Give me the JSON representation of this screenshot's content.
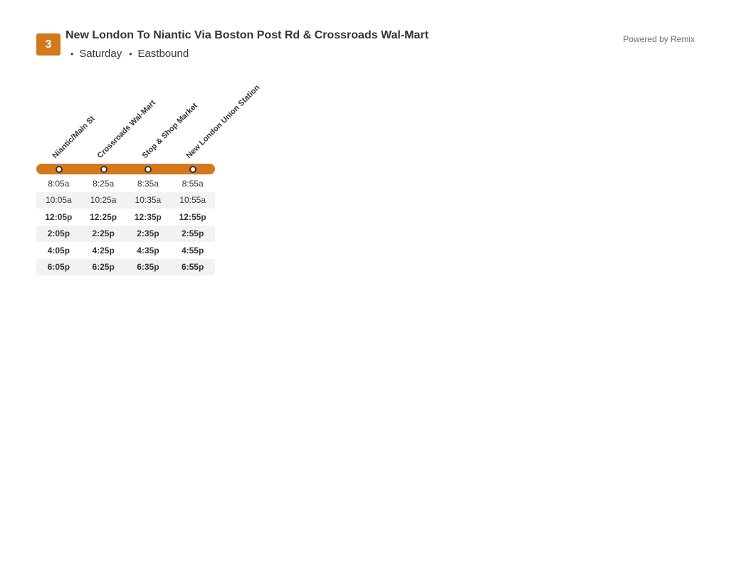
{
  "header": {
    "route_number": "3",
    "route_title": "New London To Niantic Via Boston Post Rd & Crossroads Wal-Mart",
    "day": "Saturday",
    "direction": "Eastbound",
    "bullet": "•",
    "powered_by": "Powered by Remix"
  },
  "colors": {
    "route": "#d4781e",
    "alt_row": "#f2f2f2",
    "text": "#333333"
  },
  "stops": [
    {
      "name": "Niantic/Main St"
    },
    {
      "name": "Crossroads Wal-Mart"
    },
    {
      "name": "Stop & Shop Market"
    },
    {
      "name": "New London Union Station"
    }
  ],
  "trips": [
    {
      "times": [
        "8:05a",
        "8:25a",
        "8:35a",
        "8:55a"
      ],
      "pm": false
    },
    {
      "times": [
        "10:05a",
        "10:25a",
        "10:35a",
        "10:55a"
      ],
      "pm": false
    },
    {
      "times": [
        "12:05p",
        "12:25p",
        "12:35p",
        "12:55p"
      ],
      "pm": true
    },
    {
      "times": [
        "2:05p",
        "2:25p",
        "2:35p",
        "2:55p"
      ],
      "pm": true
    },
    {
      "times": [
        "4:05p",
        "4:25p",
        "4:35p",
        "4:55p"
      ],
      "pm": true
    },
    {
      "times": [
        "6:05p",
        "6:25p",
        "6:35p",
        "6:55p"
      ],
      "pm": true
    }
  ]
}
